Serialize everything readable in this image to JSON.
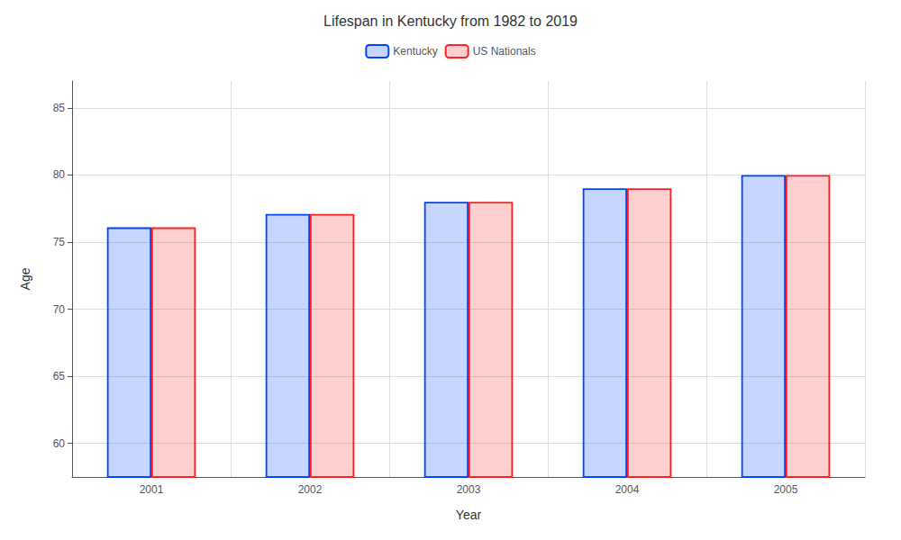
{
  "chart_data": {
    "type": "bar",
    "title": "Lifespan in Kentucky from 1982 to 2019",
    "x_label": "Year",
    "y_label": "Age",
    "categories": [
      "2001",
      "2002",
      "2003",
      "2004",
      "2005"
    ],
    "series": [
      {
        "name": "Kentucky",
        "color": "#0044ff",
        "values": [
          76.1,
          77.1,
          78.0,
          79.0,
          80.0
        ]
      },
      {
        "name": "US Nationals",
        "color": "#ff2222",
        "values": [
          76.1,
          77.1,
          78.0,
          79.0,
          80.0
        ]
      }
    ],
    "ylim": [
      57.5,
      87
    ],
    "yticks": [
      60,
      65,
      70,
      75,
      80,
      85
    ],
    "grid": true,
    "legend": "top"
  }
}
